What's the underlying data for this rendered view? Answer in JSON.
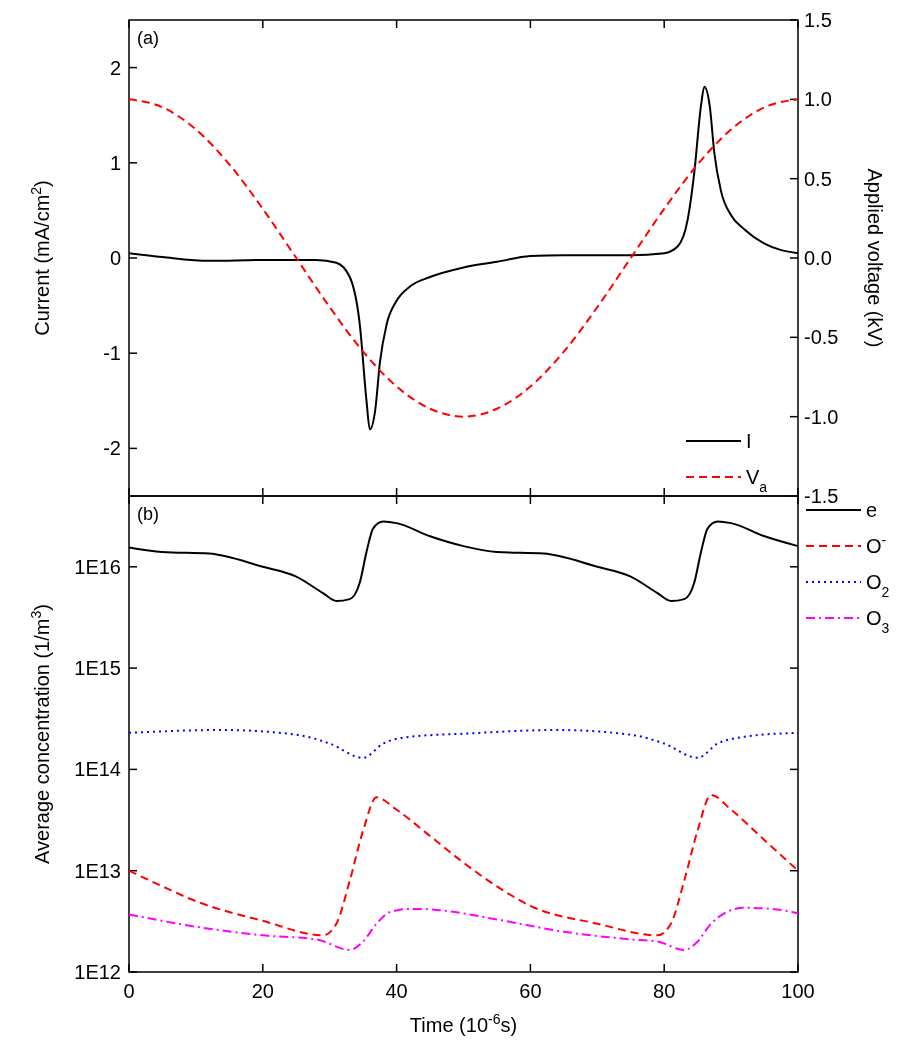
{
  "chart_data": [
    {
      "type": "line",
      "annotations": [
        "(a)"
      ],
      "ylabel": "Current (mA/cm$^{2}$)",
      "y2label": "Applied voltage (kV)",
      "xlim": [
        0,
        100
      ],
      "xticks": [
        0,
        20,
        40,
        60,
        80,
        100
      ],
      "ylim": [
        -2.5,
        2.5
      ],
      "yticks": [
        -2,
        -1,
        0,
        1,
        2
      ],
      "y2lim": [
        -1.5,
        1.5
      ],
      "y2ticks": [
        {
          "value": -1.5,
          "label": "-1.5"
        },
        {
          "value": -1,
          "label": "-1.0"
        },
        {
          "value": -0.5,
          "label": "-0.5"
        },
        {
          "value": 0,
          "label": "0.0"
        },
        {
          "value": 0.5,
          "label": "0.5"
        },
        {
          "value": 1,
          "label": "1.0"
        },
        {
          "value": 1.5,
          "label": "1.5"
        }
      ],
      "tick_labels": "y",
      "legend": "bottom right",
      "grid": false,
      "series": [
        {
          "name": "I",
          "color": "#000000",
          "line_style": "solid",
          "x": [
            0,
            5,
            12,
            20,
            28,
            31,
            33,
            34.5,
            35.5,
            36,
            36.8,
            37.5,
            38.5,
            40,
            42,
            45,
            50,
            55,
            60,
            65,
            75,
            80,
            82,
            83.5,
            84.5,
            85.5,
            86,
            86.8,
            87.5,
            88.5,
            90,
            92,
            95,
            100
          ],
          "values": [
            0.05,
            0.01,
            -0.03,
            -0.02,
            -0.02,
            -0.05,
            -0.2,
            -0.7,
            -1.5,
            -1.8,
            -1.6,
            -1.1,
            -0.7,
            -0.45,
            -0.3,
            -0.2,
            -0.1,
            -0.04,
            0.02,
            0.03,
            0.03,
            0.05,
            0.12,
            0.4,
            0.9,
            1.6,
            1.8,
            1.6,
            1.1,
            0.7,
            0.45,
            0.3,
            0.15,
            0.05
          ]
        },
        {
          "name": "V$_{a}$",
          "color": "#ff0000",
          "line_style": "dashed",
          "axis": "y2",
          "x": [
            0,
            5,
            10,
            15,
            20,
            25,
            30,
            35,
            40,
            45,
            50,
            55,
            60,
            65,
            70,
            75,
            80,
            85,
            90,
            95,
            100
          ],
          "values": [
            1,
            0.95,
            0.81,
            0.59,
            0.31,
            0,
            -0.31,
            -0.59,
            -0.81,
            -0.95,
            -1,
            -0.95,
            -0.81,
            -0.59,
            -0.31,
            0,
            0.31,
            0.59,
            0.81,
            0.95,
            1
          ]
        }
      ]
    },
    {
      "type": "line",
      "annotations": [
        "(b)"
      ],
      "xlabel": "Time (10$^{-6}$s)",
      "ylabel": "Average concentration (1/m$^{3}$)",
      "log": "y",
      "xlim": [
        0,
        100
      ],
      "xticks": [
        0,
        20,
        40,
        60,
        80,
        100
      ],
      "ylim": [
        1000000000000.0,
        5e+16
      ],
      "yticks": [
        {
          "value": 1000000000000.0,
          "label": "1E12"
        },
        {
          "value": 10000000000000.0,
          "label": "1E13"
        },
        {
          "value": 100000000000000.0,
          "label": "1E14"
        },
        {
          "value": 1000000000000000.0,
          "label": "1E15"
        },
        {
          "value": 1e+16,
          "label": "1E16"
        }
      ],
      "legend": "right",
      "grid": false,
      "series": [
        {
          "name": "e",
          "color": "#000000",
          "line_style": "solid",
          "x": [
            0,
            5,
            12,
            20,
            25,
            29,
            31,
            33,
            34.5,
            35.5,
            36.5,
            38,
            40,
            45,
            50,
            55,
            62,
            70,
            75,
            79,
            81,
            83,
            84.5,
            85.5,
            86.5,
            88,
            90,
            95,
            100
          ],
          "values": [
            1.55e+16,
            1.4e+16,
            1.35e+16,
            1e+16,
            8000000000000000.0,
            5500000000000000.0,
            4600000000000000.0,
            4800000000000000.0,
            7000000000000000.0,
            1.4e+16,
            2.4e+16,
            2.8e+16,
            2.7e+16,
            2e+16,
            1.6e+16,
            1.4e+16,
            1.35e+16,
            1e+16,
            8000000000000000.0,
            5500000000000000.0,
            4600000000000000.0,
            4800000000000000.0,
            7000000000000000.0,
            1.4e+16,
            2.4e+16,
            2.8e+16,
            2.7e+16,
            2e+16,
            1.6e+16
          ]
        },
        {
          "name": "O$^{-}$",
          "color": "#ff0000",
          "line_style": "dashed",
          "x": [
            0,
            5,
            10,
            20,
            29,
            31,
            33,
            35,
            37,
            40,
            45,
            50,
            55,
            60,
            70,
            79,
            81,
            83,
            85,
            87,
            90,
            95,
            100
          ],
          "values": [
            10000000000000.0,
            7000000000000.0,
            5000000000000.0,
            3200000000000.0,
            2300000000000.0,
            3000000000000.0,
            8000000000000.0,
            25000000000000.0,
            53000000000000.0,
            40000000000000.0,
            22000000000000.0,
            12000000000000.0,
            7000000000000.0,
            4500000000000.0,
            3000000000000.0,
            2300000000000.0,
            3000000000000.0,
            8000000000000.0,
            25000000000000.0,
            56000000000000.0,
            40000000000000.0,
            20000000000000.0,
            10000000000000.0
          ]
        },
        {
          "name": "O$_{2}$",
          "color": "#0000ff",
          "line_style": "dotted",
          "x": [
            0,
            14,
            25,
            30,
            35,
            38,
            42,
            50,
            64,
            75,
            80,
            85,
            88,
            92,
            100
          ],
          "values": [
            230000000000000.0,
            245000000000000.0,
            220000000000000.0,
            180000000000000.0,
            130000000000000.0,
            180000000000000.0,
            210000000000000.0,
            225000000000000.0,
            245000000000000.0,
            220000000000000.0,
            180000000000000.0,
            130000000000000.0,
            180000000000000.0,
            210000000000000.0,
            230000000000000.0
          ]
        },
        {
          "name": "O$_{3}$",
          "color": "#ff00ff",
          "line_style": "dashdot",
          "x": [
            0,
            10,
            20,
            28,
            33,
            35,
            37,
            39,
            42,
            46,
            55,
            65,
            75,
            79,
            83,
            85,
            87,
            89,
            92,
            96,
            100
          ],
          "values": [
            3700000000000.0,
            2800000000000.0,
            2300000000000.0,
            2100000000000.0,
            1650000000000.0,
            2000000000000.0,
            3000000000000.0,
            3900000000000.0,
            4200000000000.0,
            4100000000000.0,
            3300000000000.0,
            2500000000000.0,
            2100000000000.0,
            2000000000000.0,
            1650000000000.0,
            2000000000000.0,
            3000000000000.0,
            3800000000000.0,
            4300000000000.0,
            4200000000000.0,
            3800000000000.0
          ]
        }
      ]
    }
  ]
}
